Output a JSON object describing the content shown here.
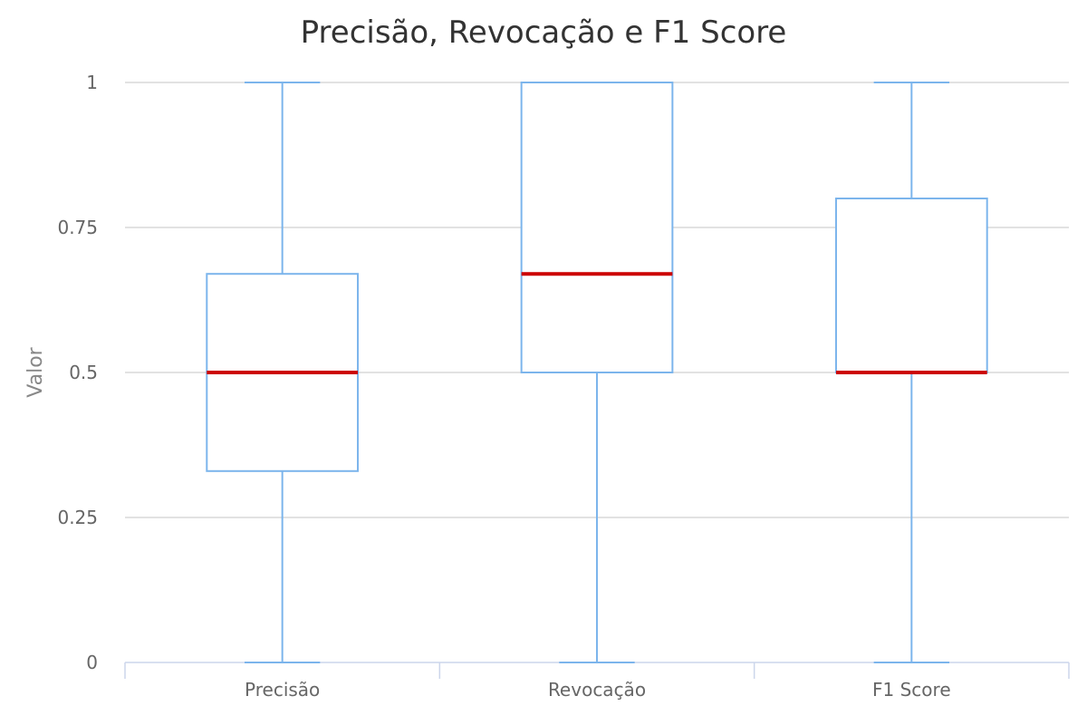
{
  "chart_data": {
    "type": "boxplot",
    "title": "Precisão, Revocação e F1 Score",
    "xlabel": "",
    "ylabel": "Valor",
    "ylim": [
      0,
      1
    ],
    "yticks": [
      "0",
      "0.25",
      "0.5",
      "0.75",
      "1"
    ],
    "ytick_values": [
      0,
      0.25,
      0.5,
      0.75,
      1
    ],
    "grid": true,
    "categories": [
      "Precisão",
      "Revocação",
      "F1 Score"
    ],
    "series": [
      {
        "min": 0,
        "q1": 0.33,
        "median": 0.5,
        "q3": 0.67,
        "max": 1
      },
      {
        "min": 0,
        "q1": 0.5,
        "median": 0.67,
        "q3": 1,
        "max": 1
      },
      {
        "min": 0,
        "q1": 0.5,
        "median": 0.5,
        "q3": 0.8,
        "max": 1
      }
    ],
    "colors": {
      "box": "#7cb5ec",
      "median": "#cc0000",
      "grid": "#d8d8d8",
      "axis": "#ccd6eb"
    }
  }
}
